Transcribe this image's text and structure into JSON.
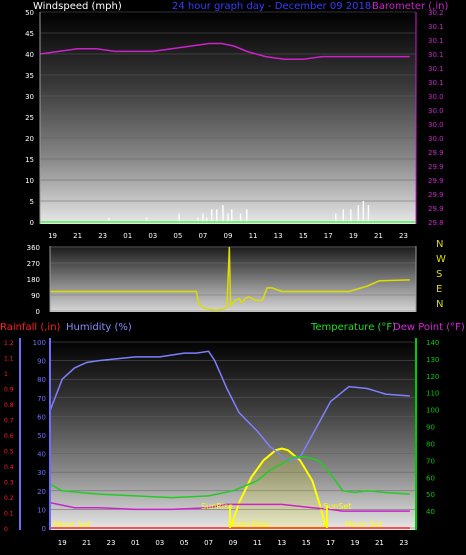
{
  "header": {
    "wind_label": "Windspeed (mph)",
    "period_label": "24 hour graph day - December 09 2018",
    "baro_label": "Barometer (,in)"
  },
  "colors": {
    "wind": "#ffffff",
    "baro": "#cc22cc",
    "direction": "#dddd00",
    "humidity": "#7f7fff",
    "temperature": "#22cc22",
    "dewpoint": "#cc22cc",
    "rain": "#ff2020",
    "sun": "#ffff00",
    "grid": "#606060",
    "axis_left": "#6d6dff",
    "axis_right": "#00cc00"
  },
  "x_ticks": [
    "19",
    "21",
    "23",
    "01",
    "03",
    "05",
    "07",
    "09",
    "11",
    "13",
    "15",
    "17",
    "19",
    "21",
    "23"
  ],
  "lower_labels": {
    "rain": "Rainfall (,in)",
    "humidity": "Humidity (%)",
    "temperature": "Temperature (°F)",
    "dewpoint": "Dew Point (°F)",
    "sunrise": "SunRise",
    "sunset": "SunSet",
    "moonset_left": "Moon Set",
    "moonrise": "Moon Rise",
    "moonset_right": "Moon Set"
  },
  "compass": [
    "N",
    "W",
    "S",
    "E",
    "N"
  ],
  "chart_data": [
    {
      "type": "line",
      "ylabel": "Windspeed (mph)",
      "ylim": [
        0,
        50
      ],
      "yticks": [
        0,
        5,
        10,
        15,
        20,
        25,
        30,
        35,
        40,
        45,
        50
      ],
      "y2label": "Barometer (,in)",
      "y2lim": [
        29.8,
        30.2
      ],
      "y2ticks": [
        "29.8",
        "29.9",
        "29.9",
        "29.9",
        "29.9",
        "29.9",
        "30.0",
        "30.0",
        "30.0",
        "30.0",
        "30.1",
        "30.1",
        "30.1",
        "30.1",
        "30.1",
        "30.2"
      ],
      "series": [
        {
          "name": "Barometer (,in)",
          "x": [
            18.0,
            19.5,
            21.0,
            22.5,
            24.0,
            25.5,
            27.0,
            28.5,
            30.0,
            31.5,
            32.5,
            33.5,
            34.5,
            36.0,
            37.5,
            39.0,
            40.5,
            42.0,
            43.5,
            45.0,
            47.5
          ],
          "values": [
            30.12,
            30.125,
            30.13,
            30.13,
            30.125,
            30.125,
            30.125,
            30.13,
            30.135,
            30.14,
            30.14,
            30.135,
            30.125,
            30.115,
            30.11,
            30.11,
            30.115,
            30.115,
            30.115,
            30.115,
            30.115
          ]
        },
        {
          "name": "Windspeed (mph)",
          "gusts_x": [
            23.5,
            26.5,
            29.1,
            30.6,
            31.0,
            31.3,
            31.7,
            32.1,
            32.6,
            33.0,
            33.3,
            34.0,
            34.5,
            41.6,
            42.2,
            42.8,
            43.4,
            43.8,
            44.2
          ],
          "gusts": [
            1,
            1,
            2,
            1,
            2,
            1,
            3,
            3,
            4,
            2,
            3,
            2,
            3,
            2,
            3,
            3,
            4,
            5,
            4
          ]
        }
      ]
    },
    {
      "type": "line",
      "ylabel": "Wind Direction",
      "ylim": [
        0,
        360
      ],
      "yticks": [
        0,
        90,
        180,
        270,
        360
      ],
      "series": [
        {
          "name": "Wind Direction",
          "x": [
            18.0,
            20.0,
            23.0,
            26.0,
            29.0,
            30.0,
            30.2,
            30.5,
            31.0,
            31.6,
            32.2,
            32.5,
            32.7,
            32.8,
            33.2,
            33.5,
            33.7,
            34.0,
            34.3,
            34.8,
            35.4,
            35.8,
            36.2,
            37.0,
            40.0,
            42.5,
            44.0,
            45.0,
            47.5
          ],
          "values": [
            110,
            110,
            110,
            110,
            110,
            110,
            40,
            20,
            10,
            5,
            10,
            20,
            360,
            30,
            60,
            70,
            45,
            70,
            80,
            60,
            60,
            130,
            130,
            110,
            110,
            110,
            140,
            170,
            175
          ]
        }
      ]
    },
    {
      "type": "line",
      "ylabel": "Rainfall (,in) / Humidity (%)",
      "ylim": [
        0,
        100
      ],
      "yticks_humidity": [
        0,
        10,
        20,
        30,
        40,
        50,
        60,
        70,
        80,
        90,
        100
      ],
      "yticks_rain": [
        "0",
        "0.1",
        "0.2",
        "0.3",
        "0.4",
        "0.5",
        "0.6",
        "0.7",
        "0.8",
        "0.9",
        "1",
        "1.1",
        "1.2"
      ],
      "y2label": "Temperature (°F) / Dew Point (°F)",
      "y2lim": [
        30,
        140
      ],
      "y2ticks": [
        40,
        50,
        60,
        70,
        80,
        90,
        100,
        110,
        120,
        130,
        140
      ],
      "series": [
        {
          "name": "Humidity (%)",
          "axis": "left",
          "x": [
            18.0,
            19.0,
            20.0,
            21.0,
            22.0,
            23.5,
            25.0,
            27.0,
            29.0,
            30.0,
            31.0,
            31.5,
            32.5,
            33.5,
            35.0,
            36.0,
            37.5,
            38.5,
            39.0,
            40.0,
            41.0,
            42.5,
            44.0,
            45.5,
            47.5
          ],
          "values": [
            63,
            80,
            86,
            89,
            90,
            91,
            92,
            92,
            94,
            94,
            95,
            90,
            75,
            62,
            52,
            44,
            36,
            38,
            44,
            56,
            68,
            76,
            75,
            72,
            71
          ]
        },
        {
          "name": "Temperature (°F)",
          "axis": "right",
          "x": [
            18.0,
            19.0,
            20.5,
            22.0,
            25.0,
            28.0,
            31.0,
            33.0,
            35.0,
            36.0,
            37.0,
            37.5,
            38.0,
            39.0,
            40.0,
            41.0,
            42.0,
            43.0,
            44.0,
            45.5,
            47.5
          ],
          "values": [
            56,
            52,
            51,
            50,
            49,
            48,
            49,
            52,
            58,
            64,
            68,
            70,
            72,
            72,
            70,
            62,
            52,
            51,
            52,
            51,
            50
          ]
        },
        {
          "name": "Dew Point (°F)",
          "axis": "right",
          "x": [
            18.0,
            20.0,
            22.0,
            25.0,
            28.0,
            31.0,
            32.5,
            34.5,
            37.0,
            39.5,
            41.0,
            42.0,
            44.0,
            45.5,
            47.5
          ],
          "values": [
            45,
            42,
            42,
            41,
            41,
            42,
            44,
            44,
            44,
            42,
            41,
            40,
            40,
            40,
            40
          ]
        },
        {
          "name": "Sun",
          "axis": "right",
          "x": [
            32.8,
            33.5,
            34.5,
            35.5,
            36.5,
            37.0,
            37.5,
            38.5,
            39.5,
            40.2,
            40.6
          ],
          "values": [
            30,
            45,
            60,
            70,
            76,
            77,
            76,
            70,
            58,
            42,
            30
          ]
        },
        {
          "name": "Rainfall (,in)",
          "axis": "left",
          "x": [
            18.0,
            47.5
          ],
          "values": [
            0,
            0
          ]
        }
      ]
    }
  ]
}
